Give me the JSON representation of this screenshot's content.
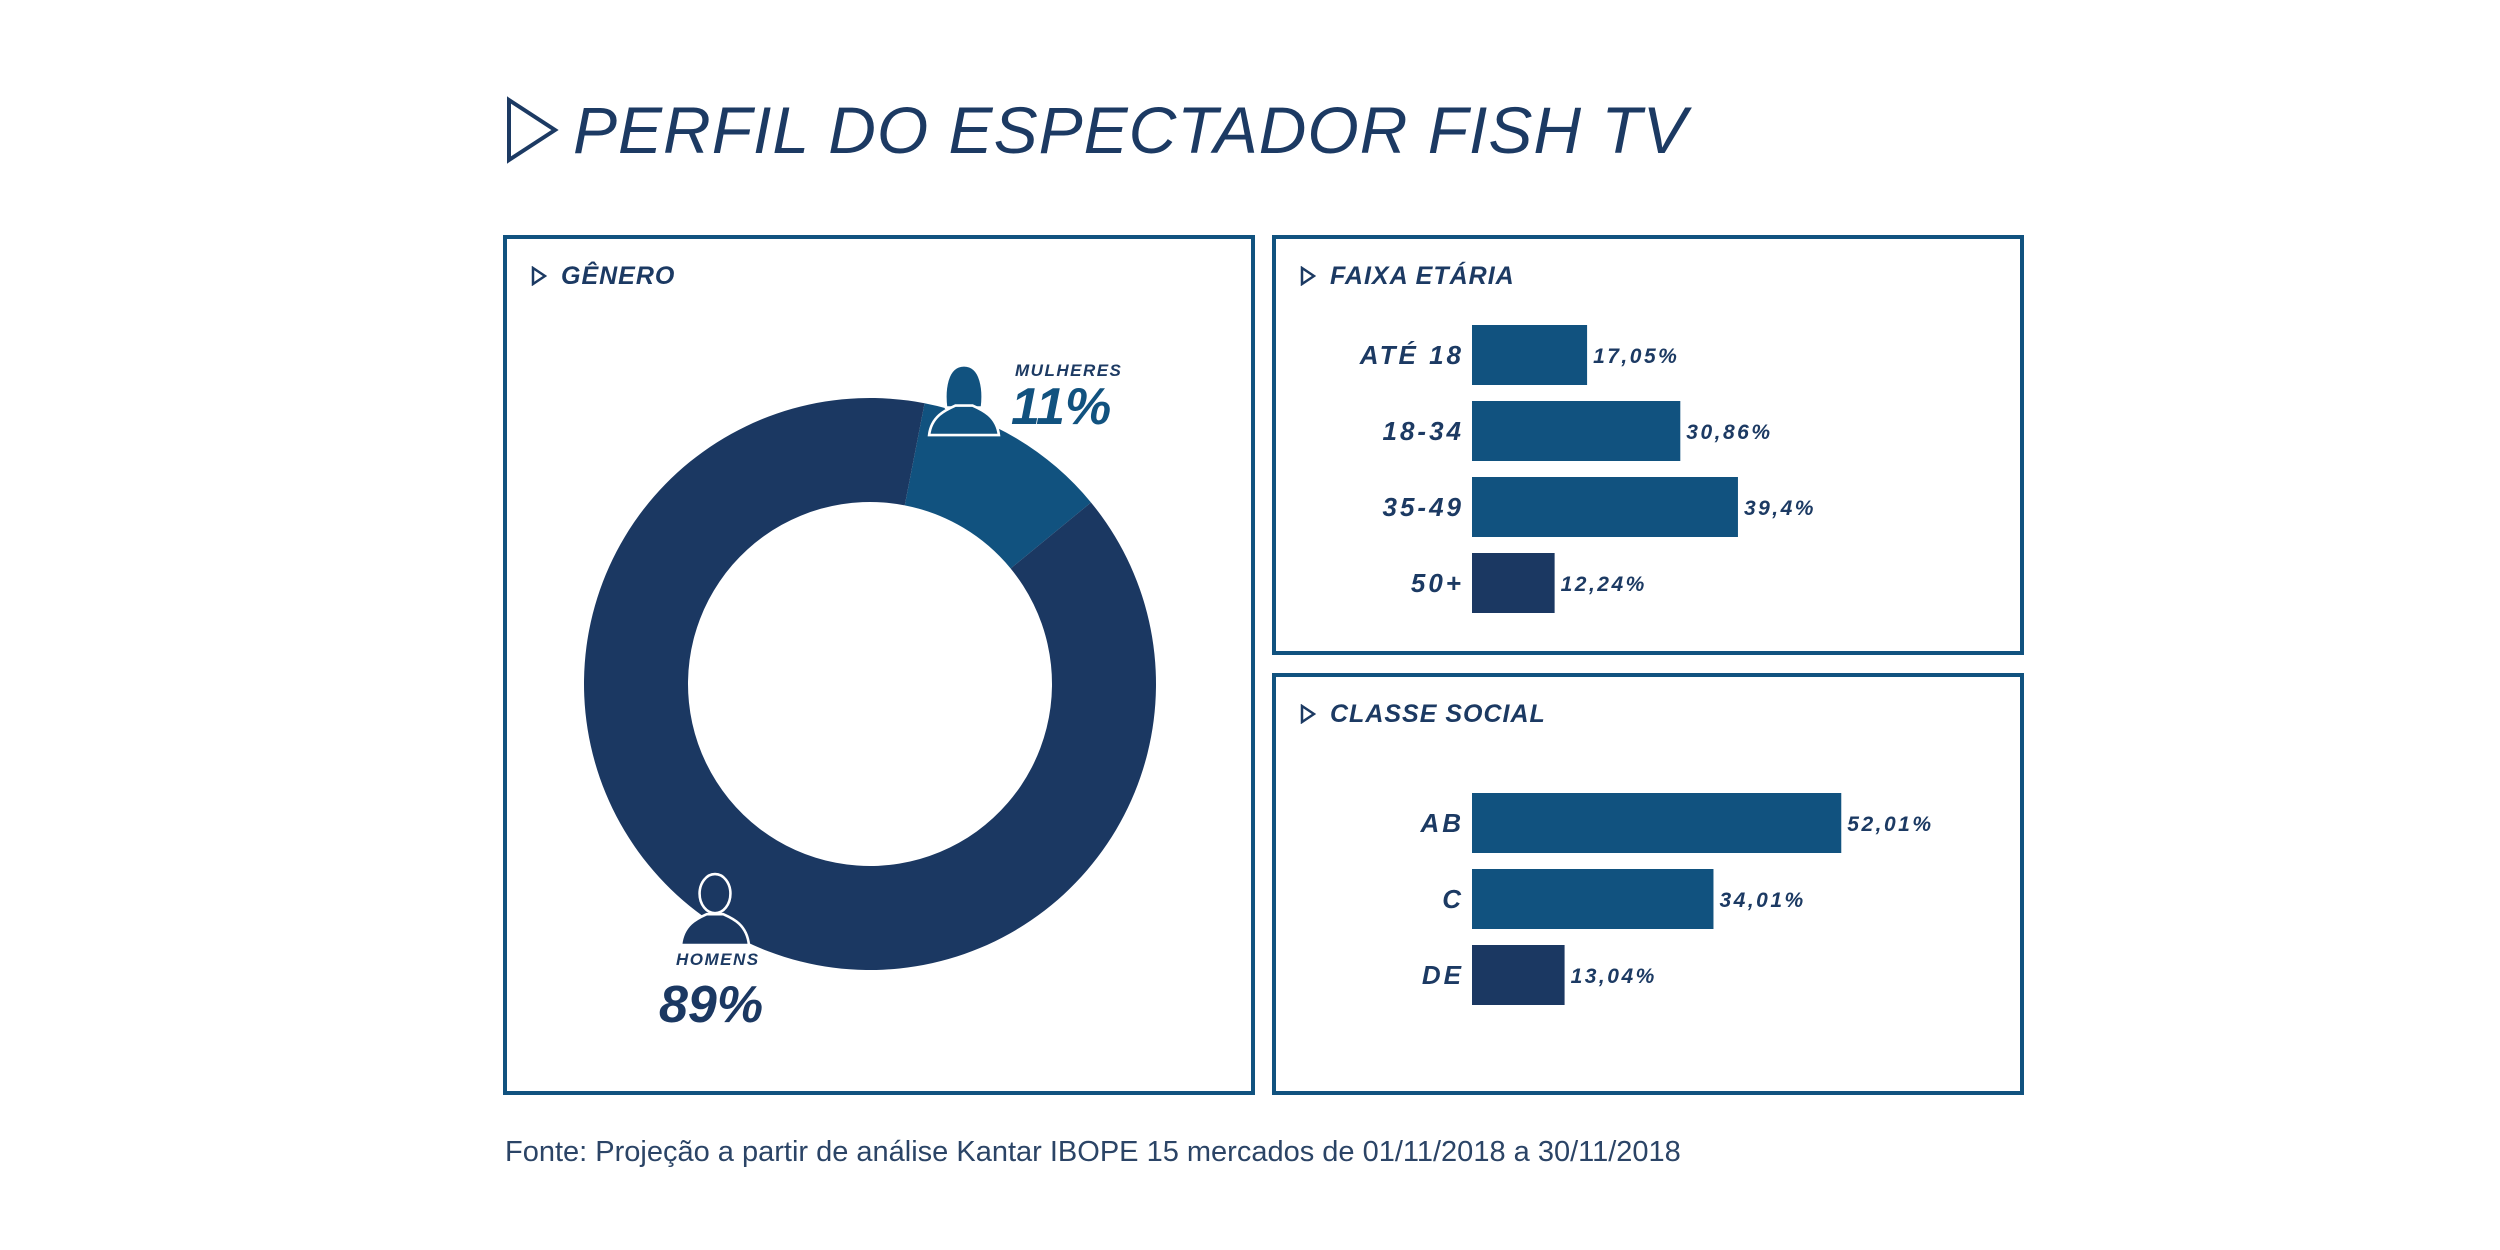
{
  "title": "PERFIL DO ESPECTADOR FISH TV",
  "source": "Fonte: Projeção a partir de análise Kantar IBOPE 15 mercados de 01/11/2018 a 30/11/2018",
  "colors": {
    "dark": "#1b3862",
    "mid": "#11527f",
    "text": "#1c3a63",
    "border": "#11527f"
  },
  "chart_data": [
    {
      "type": "pie",
      "title": "GÊNERO",
      "slices": [
        {
          "name": "MULHERES",
          "value": 11,
          "label": "11%",
          "color": "#11527f",
          "icon": "female-user-icon"
        },
        {
          "name": "HOMENS",
          "value": 89,
          "label": "89%",
          "color": "#1b3862",
          "icon": "male-user-icon"
        }
      ]
    },
    {
      "type": "bar",
      "orientation": "horizontal",
      "title": "FAIXA ETÁRIA",
      "categories": [
        "ATÉ 18",
        "18-34",
        "35-49",
        "50+"
      ],
      "values": [
        17.05,
        30.86,
        39.4,
        12.24
      ],
      "labels": [
        "17,05%",
        "30,86%",
        "39,4%",
        "12,24%"
      ],
      "colors": [
        "#11527f",
        "#11527f",
        "#11527f",
        "#1b3862"
      ]
    },
    {
      "type": "bar",
      "orientation": "horizontal",
      "title": "CLASSE SOCIAL",
      "categories": [
        "AB",
        "C",
        "DE"
      ],
      "values": [
        52.01,
        34.01,
        13.04
      ],
      "labels": [
        "52,01%",
        "34,01%",
        "13,04%"
      ],
      "colors": [
        "#11527f",
        "#11527f",
        "#1b3862"
      ]
    }
  ]
}
